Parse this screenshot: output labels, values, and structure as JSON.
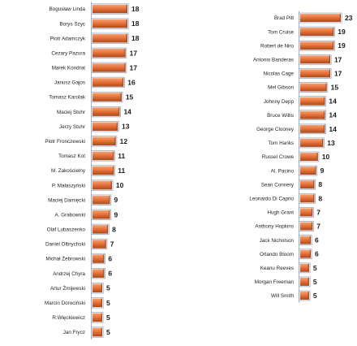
{
  "chart_data": [
    {
      "type": "bar",
      "orientation": "horizontal",
      "categories": [
        "Bogusław Linda",
        "Borys Szyc",
        "Piotr Adamczyk",
        "Cezary Pazura",
        "Marek Kondrat",
        "Janusz Gajos",
        "Tomasz Karolak",
        "Maciej Stuhr",
        "Jerzy Stuhr",
        "Piotr Fronczewski",
        "Tomasz Kot",
        "M. Zakościelny",
        "P. Małaszyński",
        "Maciej Damięcki",
        "A. Grabowski",
        "Olaf Lubaszenko",
        "Daniel Olbrychski",
        "Michał Żebrowski",
        "Andrzej Chyra",
        "Artur Żmijewski",
        "Marcin Dorociński",
        "R.Więckiewicz",
        "Jan Frycz"
      ],
      "values": [
        18,
        18,
        18,
        17,
        17,
        16,
        15,
        14,
        13,
        12,
        11,
        11,
        10,
        9,
        9,
        8,
        7,
        6,
        6,
        5,
        5,
        5,
        5
      ],
      "colors": {
        "bar": "#e8733a",
        "bar_highlight": "#f5a271",
        "bar_shadow": "#a84a1c",
        "axis": "#9aa9c0"
      },
      "legend": "none",
      "grid": false
    },
    {
      "type": "bar",
      "orientation": "horizontal",
      "categories": [
        "Brad Pitt",
        "Tom Cruise",
        "Robert de Niro",
        "Antonio Banderas",
        "Nicolas Cage",
        "Mel Gibson",
        "Johnny Depp",
        "Bruce Willis",
        "George Clooney",
        "Tom Hanks",
        "Russel Crowe",
        "Al. Pacino",
        "Sean Connery",
        "Leonardo Di Caprio",
        "Hugh Grant",
        "Anthony Hopkins",
        "Jack Nicholson",
        "Orlando Bloom",
        "Keanu Reeves",
        "Morgan Freeman",
        "Will Smith"
      ],
      "values": [
        23,
        19,
        19,
        17,
        17,
        15,
        14,
        14,
        14,
        13,
        10,
        9,
        8,
        8,
        7,
        7,
        6,
        6,
        5,
        5,
        5
      ],
      "colors": {
        "bar": "#e8733a",
        "bar_highlight": "#f5a271",
        "bar_shadow": "#a84a1c",
        "axis": "#9aa9c0"
      },
      "legend": "none",
      "grid": false
    }
  ]
}
